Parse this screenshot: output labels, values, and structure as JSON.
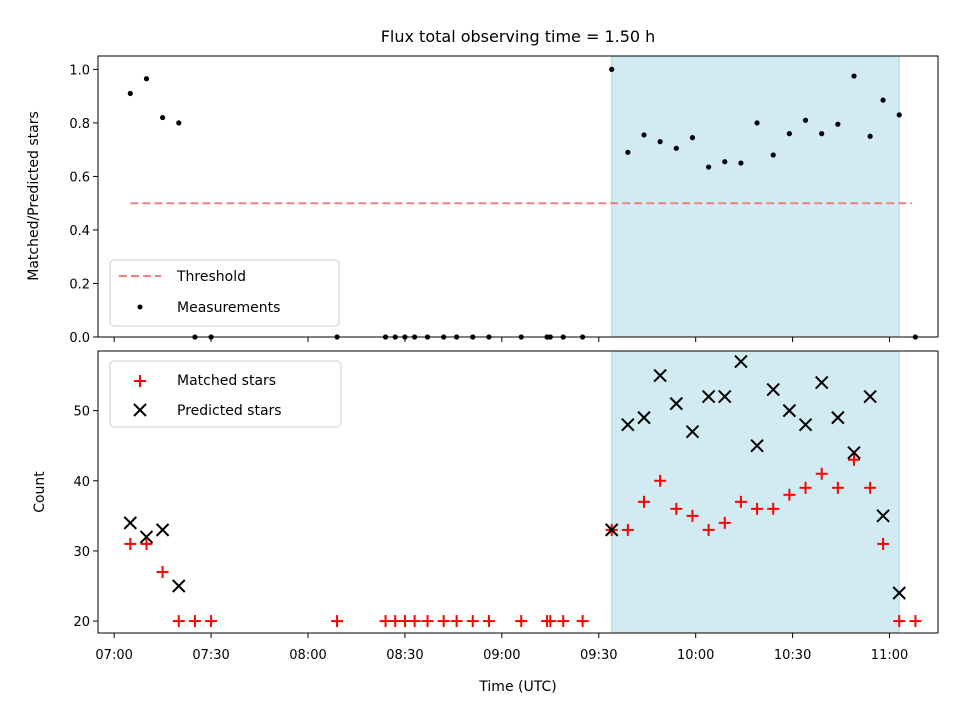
{
  "chart_data": [
    {
      "type": "scatter",
      "title": "Flux total observing time = 1.50 h",
      "xlabel": "",
      "ylabel": "Matched/Predicted stars",
      "ylim": [
        0,
        1.05
      ],
      "yticks": [
        "0.0",
        "0.2",
        "0.4",
        "0.6",
        "0.8",
        "1.0"
      ],
      "ytick_values": [
        0,
        0.2,
        0.4,
        0.6,
        0.8,
        1.0
      ],
      "legend_position": "lower-left",
      "shaded_region": {
        "x_start": "09:34",
        "x_end": "11:03",
        "color": "#add8e6"
      },
      "threshold": {
        "name": "Threshold",
        "value": 0.5,
        "x_start": "07:05",
        "x_end": "11:07",
        "color": "#f08080"
      },
      "series": [
        {
          "name": "Measurements",
          "color": "#000000",
          "points": [
            [
              "07:05",
              0.91
            ],
            [
              "07:10",
              0.965
            ],
            [
              "07:15",
              0.82
            ],
            [
              "07:20",
              0.8
            ],
            [
              "07:25",
              0.0
            ],
            [
              "07:30",
              0.0
            ],
            [
              "08:09",
              0.0
            ],
            [
              "08:24",
              0.0
            ],
            [
              "08:27",
              0.0
            ],
            [
              "08:30",
              0.0
            ],
            [
              "08:33",
              0.0
            ],
            [
              "08:37",
              0.0
            ],
            [
              "08:42",
              0.0
            ],
            [
              "08:46",
              0.0
            ],
            [
              "08:51",
              0.0
            ],
            [
              "08:56",
              0.0
            ],
            [
              "09:06",
              0.0
            ],
            [
              "09:14",
              0.0
            ],
            [
              "09:15",
              0.0
            ],
            [
              "09:19",
              0.0
            ],
            [
              "09:25",
              0.0
            ],
            [
              "09:34",
              1.0
            ],
            [
              "09:39",
              0.69
            ],
            [
              "09:44",
              0.755
            ],
            [
              "09:49",
              0.73
            ],
            [
              "09:54",
              0.705
            ],
            [
              "09:59",
              0.745
            ],
            [
              "10:04",
              0.635
            ],
            [
              "10:09",
              0.655
            ],
            [
              "10:14",
              0.65
            ],
            [
              "10:19",
              0.8
            ],
            [
              "10:24",
              0.68
            ],
            [
              "10:29",
              0.76
            ],
            [
              "10:34",
              0.81
            ],
            [
              "10:39",
              0.76
            ],
            [
              "10:44",
              0.795
            ],
            [
              "10:49",
              0.975
            ],
            [
              "10:54",
              0.75
            ],
            [
              "10:58",
              0.885
            ],
            [
              "11:03",
              0.83
            ],
            [
              "11:08",
              0.0
            ]
          ]
        }
      ]
    },
    {
      "type": "scatter",
      "title": "",
      "xlabel": "Time (UTC)",
      "ylabel": "Count",
      "ylim": [
        18.3,
        58.5
      ],
      "yticks": [
        "20",
        "30",
        "40",
        "50"
      ],
      "ytick_values": [
        20,
        30,
        40,
        50
      ],
      "xlim": [
        "06:55",
        "11:15"
      ],
      "xticks": [
        "07:00",
        "07:30",
        "08:00",
        "08:30",
        "09:00",
        "09:30",
        "10:00",
        "10:30",
        "11:00"
      ],
      "legend_position": "upper-left",
      "shaded_region": {
        "x_start": "09:34",
        "x_end": "11:03",
        "color": "#add8e6"
      },
      "series": [
        {
          "name": "Matched stars",
          "marker": "plus",
          "color": "#ff0000",
          "points": [
            [
              "07:05",
              31
            ],
            [
              "07:10",
              31
            ],
            [
              "07:15",
              27
            ],
            [
              "07:20",
              20
            ],
            [
              "07:25",
              20
            ],
            [
              "07:30",
              20
            ],
            [
              "08:09",
              20
            ],
            [
              "08:24",
              20
            ],
            [
              "08:27",
              20
            ],
            [
              "08:30",
              20
            ],
            [
              "08:33",
              20
            ],
            [
              "08:37",
              20
            ],
            [
              "08:42",
              20
            ],
            [
              "08:46",
              20
            ],
            [
              "08:51",
              20
            ],
            [
              "08:56",
              20
            ],
            [
              "09:06",
              20
            ],
            [
              "09:14",
              20
            ],
            [
              "09:15",
              20
            ],
            [
              "09:19",
              20
            ],
            [
              "09:25",
              20
            ],
            [
              "09:34",
              33
            ],
            [
              "09:39",
              33
            ],
            [
              "09:44",
              37
            ],
            [
              "09:49",
              40
            ],
            [
              "09:54",
              36
            ],
            [
              "09:59",
              35
            ],
            [
              "10:04",
              33
            ],
            [
              "10:09",
              34
            ],
            [
              "10:14",
              37
            ],
            [
              "10:19",
              36
            ],
            [
              "10:24",
              36
            ],
            [
              "10:29",
              38
            ],
            [
              "10:34",
              39
            ],
            [
              "10:39",
              41
            ],
            [
              "10:44",
              39
            ],
            [
              "10:49",
              43
            ],
            [
              "10:54",
              39
            ],
            [
              "10:58",
              31
            ],
            [
              "11:03",
              20
            ],
            [
              "11:08",
              20
            ]
          ]
        },
        {
          "name": "Predicted stars",
          "marker": "x",
          "color": "#000000",
          "points": [
            [
              "07:05",
              34
            ],
            [
              "07:10",
              32
            ],
            [
              "07:15",
              33
            ],
            [
              "07:20",
              25
            ],
            [
              "09:34",
              33
            ],
            [
              "09:39",
              48
            ],
            [
              "09:44",
              49
            ],
            [
              "09:49",
              55
            ],
            [
              "09:54",
              51
            ],
            [
              "09:59",
              47
            ],
            [
              "10:04",
              52
            ],
            [
              "10:09",
              52
            ],
            [
              "10:14",
              57
            ],
            [
              "10:19",
              45
            ],
            [
              "10:24",
              53
            ],
            [
              "10:29",
              50
            ],
            [
              "10:34",
              48
            ],
            [
              "10:39",
              54
            ],
            [
              "10:44",
              49
            ],
            [
              "10:49",
              44
            ],
            [
              "10:54",
              52
            ],
            [
              "10:58",
              35
            ],
            [
              "11:03",
              24
            ]
          ]
        }
      ]
    }
  ]
}
